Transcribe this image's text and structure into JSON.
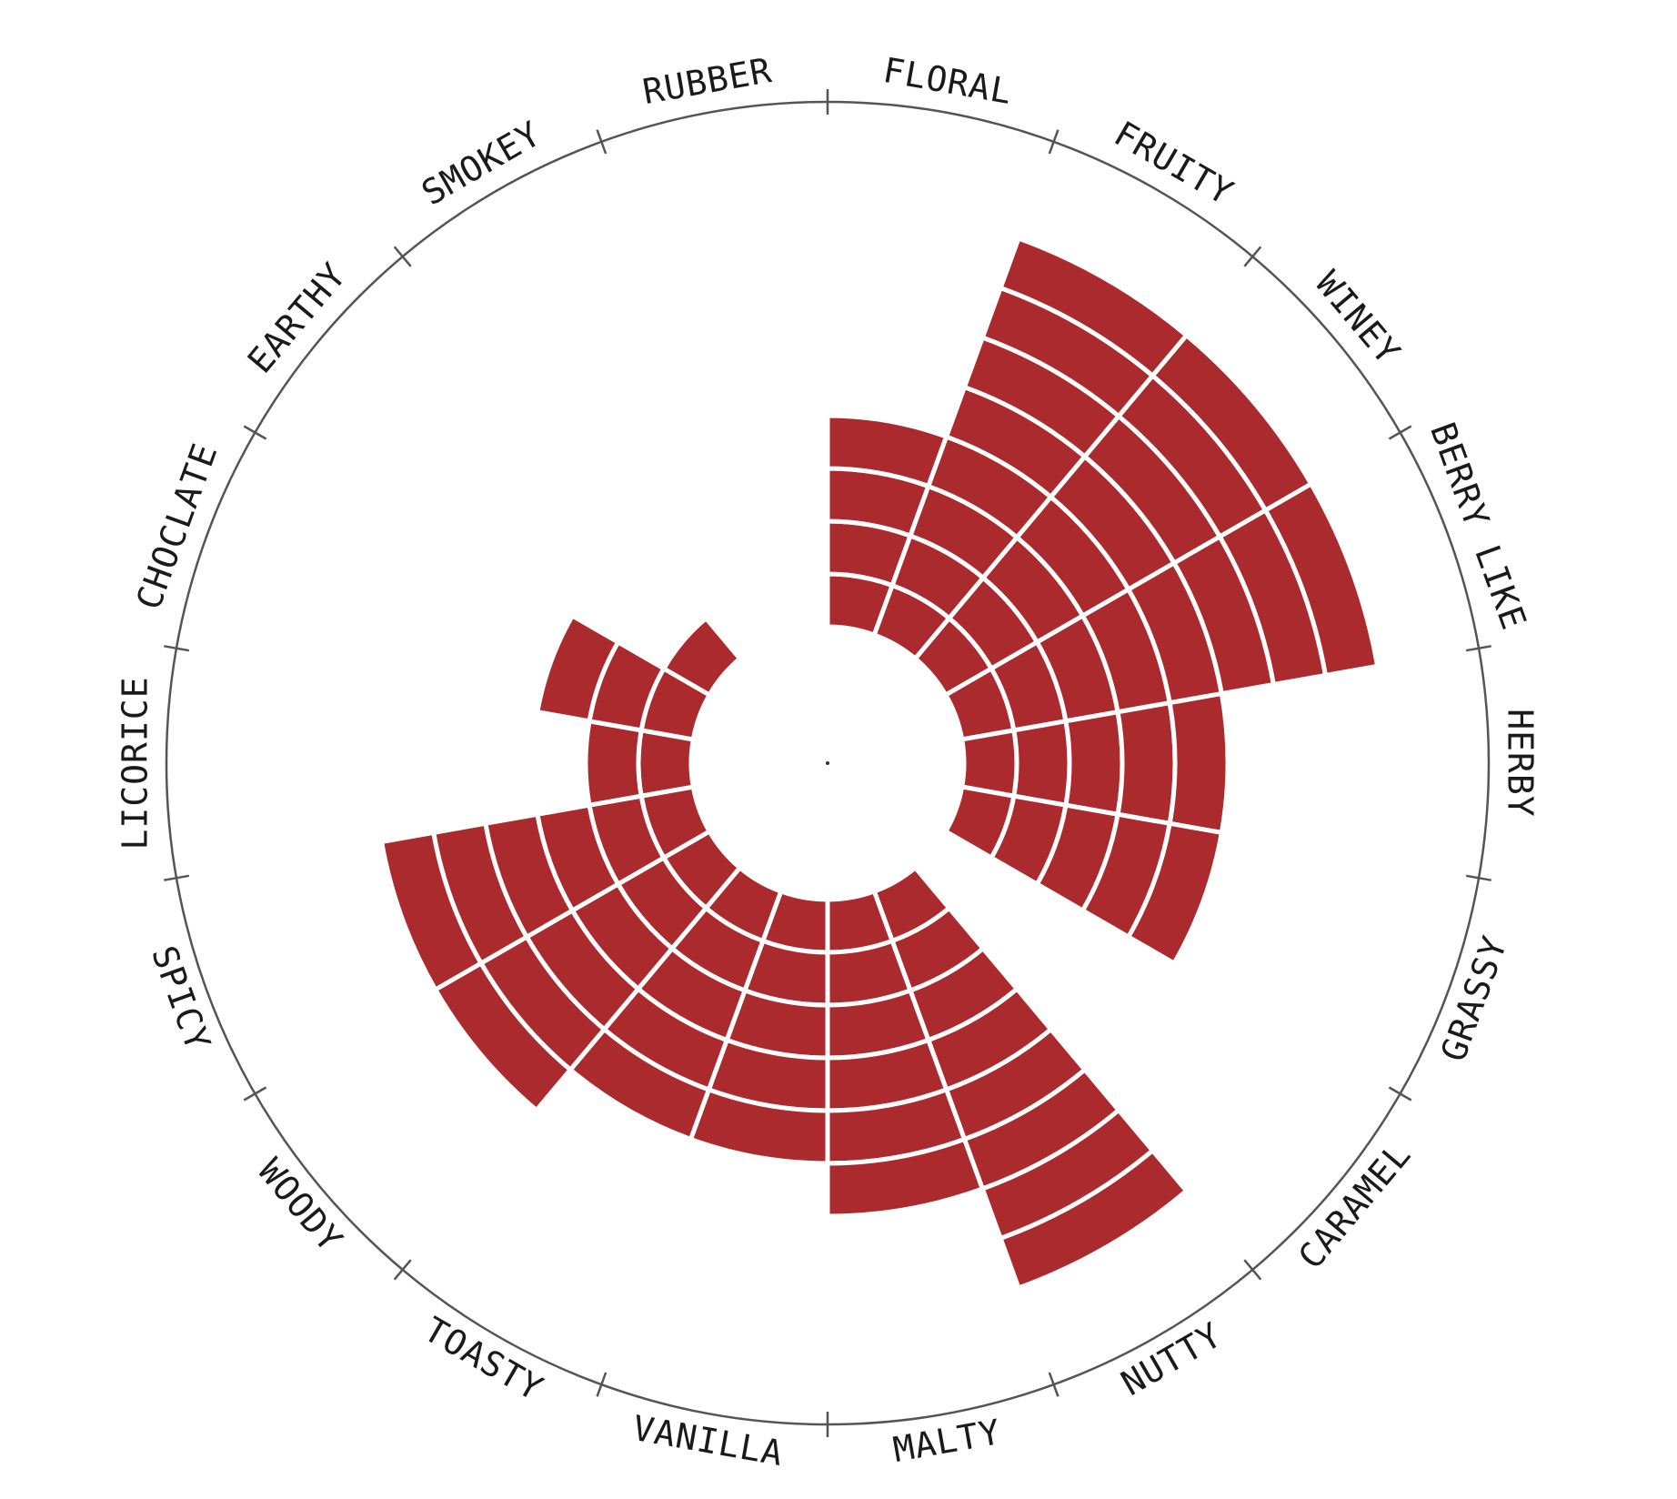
{
  "chart_data": {
    "type": "radial-bar",
    "categories": [
      "FLORAL",
      "FRUITY",
      "WINEY",
      "BERRY LIKE",
      "HERBY",
      "GRASSY",
      "CARAMEL",
      "NUTTY",
      "MALTY",
      "VANILLA",
      "TOASTY",
      "WOODY",
      "SPICY",
      "LICORICE",
      "CHOCLATE",
      "EARTHY",
      "SMOKEY",
      "RUBBER"
    ],
    "values": [
      4,
      8,
      8,
      8,
      5,
      5,
      0,
      8,
      6,
      5,
      5,
      6,
      6,
      2,
      3,
      1,
      0,
      0
    ],
    "max": 10,
    "grid": false,
    "colors": {
      "bar": "#ab2a2d",
      "separator": "#ffffff",
      "ring": "#555555",
      "text": "#1a1a1a"
    }
  }
}
